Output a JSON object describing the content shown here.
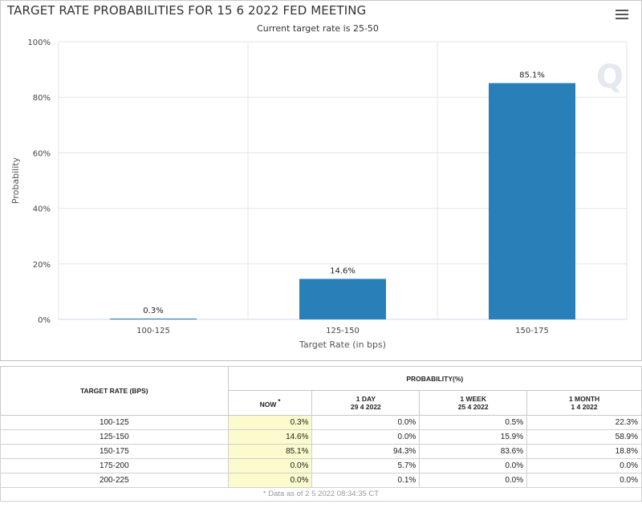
{
  "chart_data": {
    "type": "bar",
    "title": "TARGET RATE PROBABILITIES FOR 15 6 2022 FED MEETING",
    "subtitle": "Current target rate is 25-50",
    "categories": [
      "100-125",
      "125-150",
      "150-175"
    ],
    "values": [
      0.3,
      14.6,
      85.1
    ],
    "value_labels": [
      "0.3%",
      "14.6%",
      "85.1%"
    ],
    "xlabel": "Target Rate (in bps)",
    "ylabel": "Probability",
    "ylim": [
      0,
      100
    ],
    "y_ticks": [
      "0%",
      "20%",
      "40%",
      "60%",
      "80%",
      "100%"
    ],
    "grid": true,
    "bar_color": "#2980b9",
    "watermark": "Q"
  },
  "menu": {
    "icon": "hamburger-menu-icon"
  },
  "table": {
    "col_rate_header": "TARGET RATE (BPS)",
    "probability_header": "PROBABILITY(%)",
    "columns": [
      {
        "label": "NOW",
        "marker": "*",
        "date": ""
      },
      {
        "label": "1 DAY",
        "date": "29 4 2022"
      },
      {
        "label": "1 WEEK",
        "date": "25 4 2022"
      },
      {
        "label": "1 MONTH",
        "date": "1 4 2022"
      }
    ],
    "rows": [
      {
        "rate": "100-125",
        "values": [
          "0.3%",
          "0.0%",
          "0.5%",
          "22.3%"
        ]
      },
      {
        "rate": "125-150",
        "values": [
          "14.6%",
          "0.0%",
          "15.9%",
          "58.9%"
        ]
      },
      {
        "rate": "150-175",
        "values": [
          "85.1%",
          "94.3%",
          "83.6%",
          "18.8%"
        ]
      },
      {
        "rate": "175-200",
        "values": [
          "0.0%",
          "5.7%",
          "0.0%",
          "0.0%"
        ]
      },
      {
        "rate": "200-225",
        "values": [
          "0.0%",
          "0.1%",
          "0.0%",
          "0.0%"
        ]
      }
    ],
    "footnote": "* Data as of 2 5 2022 08:34:35 CT"
  }
}
